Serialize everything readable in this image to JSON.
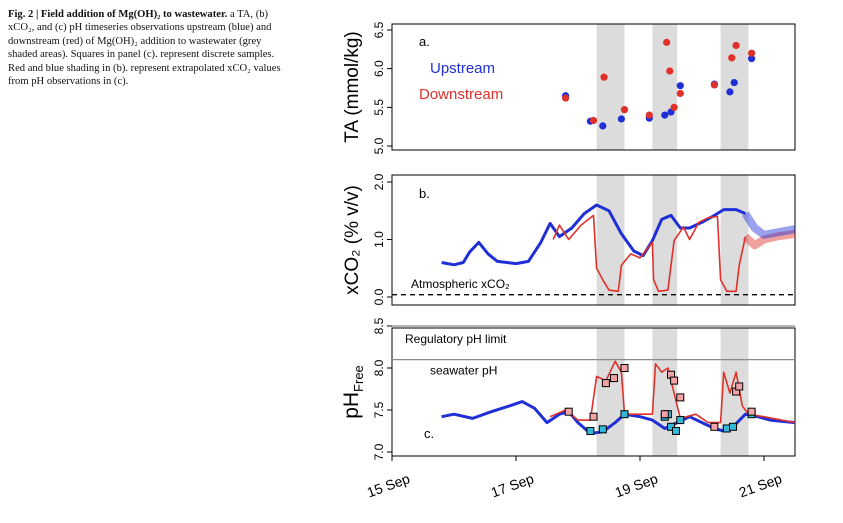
{
  "caption": {
    "title": "Fig. 2 | Field addition of Mg(OH)₂ to wastewater.",
    "body": "a TA, (b) xCO₂, and (c) pH timeseries observations upstream (blue) and downstream (red) of Mg(OH)₂ addition to wastewater (grey shaded areas). Squares in panel (c). represent discrete samples. Red and blue shading in (b). represent extrapolated xCO₂ values from pH observations in (c)."
  },
  "colors": {
    "upstream": "#1f2fd6",
    "downstream": "#e0302a",
    "shade": "#dcdcdc",
    "square_up": "#34b8d8",
    "square_down": "#f1a3a8"
  },
  "chart_data": [
    {
      "panel": "a",
      "type": "scatter",
      "ylabel": "TA (mmol/kg)",
      "xlim": [
        15.0,
        21.5
      ],
      "ylim": [
        5.0,
        6.5
      ],
      "yticks": [
        "5.0",
        "5.5",
        "6.0",
        "6.5"
      ],
      "shaded_intervals": [
        [
          18.3,
          18.75
        ],
        [
          19.2,
          19.6
        ],
        [
          20.3,
          20.75
        ]
      ],
      "legend": [
        "Upstream",
        "Downstream"
      ],
      "series": [
        {
          "name": "Upstream",
          "color": "#1f2fd6",
          "points": [
            [
              17.8,
              5.65
            ],
            [
              18.2,
              5.32
            ],
            [
              18.4,
              5.26
            ],
            [
              18.7,
              5.35
            ],
            [
              19.15,
              5.36
            ],
            [
              19.4,
              5.4
            ],
            [
              19.5,
              5.44
            ],
            [
              19.65,
              5.78
            ],
            [
              20.2,
              5.8
            ],
            [
              20.45,
              5.7
            ],
            [
              20.52,
              5.82
            ],
            [
              20.8,
              6.13
            ]
          ]
        },
        {
          "name": "Downstream",
          "color": "#e0302a",
          "points": [
            [
              17.8,
              5.62
            ],
            [
              18.25,
              5.33
            ],
            [
              18.42,
              5.89
            ],
            [
              18.75,
              5.47
            ],
            [
              19.15,
              5.4
            ],
            [
              19.43,
              6.34
            ],
            [
              19.48,
              5.97
            ],
            [
              19.55,
              5.5
            ],
            [
              19.65,
              5.68
            ],
            [
              20.2,
              5.79
            ],
            [
              20.48,
              6.14
            ],
            [
              20.55,
              6.3
            ],
            [
              20.8,
              6.2
            ]
          ]
        }
      ]
    },
    {
      "panel": "b",
      "type": "line",
      "ylabel": "xCO₂ (% v/v)",
      "xlim": [
        15.0,
        21.5
      ],
      "ylim": [
        0.0,
        2.0
      ],
      "yticks": [
        "0.0",
        "1.0",
        "2.0"
      ],
      "reference_line": {
        "label": "Atmospheric xCO₂",
        "y": 0.04
      },
      "series": [
        {
          "name": "Upstream",
          "color": "#1f2fd6",
          "points": [
            [
              15.8,
              0.6
            ],
            [
              16.0,
              0.56
            ],
            [
              16.15,
              0.6
            ],
            [
              16.25,
              0.78
            ],
            [
              16.4,
              0.95
            ],
            [
              16.55,
              0.75
            ],
            [
              16.7,
              0.62
            ],
            [
              17.0,
              0.58
            ],
            [
              17.2,
              0.62
            ],
            [
              17.4,
              0.95
            ],
            [
              17.55,
              1.28
            ],
            [
              17.7,
              1.05
            ],
            [
              17.9,
              1.2
            ],
            [
              18.1,
              1.45
            ],
            [
              18.3,
              1.6
            ],
            [
              18.5,
              1.5
            ],
            [
              18.7,
              1.1
            ],
            [
              18.9,
              0.8
            ],
            [
              19.05,
              0.72
            ],
            [
              19.2,
              0.98
            ],
            [
              19.35,
              1.35
            ],
            [
              19.5,
              1.42
            ],
            [
              19.65,
              1.2
            ],
            [
              19.8,
              1.2
            ],
            [
              20.0,
              1.3
            ],
            [
              20.2,
              1.42
            ],
            [
              20.35,
              1.52
            ],
            [
              20.55,
              1.52
            ],
            [
              20.7,
              1.45
            ]
          ]
        },
        {
          "name": "Downstream",
          "color": "#e0302a",
          "points": [
            [
              17.6,
              1.0
            ],
            [
              17.7,
              1.25
            ],
            [
              17.85,
              1.0
            ],
            [
              18.05,
              1.25
            ],
            [
              18.25,
              1.42
            ],
            [
              18.3,
              0.5
            ],
            [
              18.4,
              0.3
            ],
            [
              18.5,
              0.12
            ],
            [
              18.65,
              0.1
            ],
            [
              18.7,
              0.55
            ],
            [
              18.85,
              0.75
            ],
            [
              19.0,
              0.68
            ],
            [
              19.2,
              0.95
            ],
            [
              19.22,
              0.3
            ],
            [
              19.3,
              0.1
            ],
            [
              19.45,
              0.12
            ],
            [
              19.55,
              0.98
            ],
            [
              19.7,
              1.22
            ],
            [
              19.8,
              1.0
            ],
            [
              19.95,
              1.3
            ],
            [
              20.1,
              1.38
            ],
            [
              20.25,
              1.4
            ],
            [
              20.3,
              0.3
            ],
            [
              20.4,
              0.1
            ],
            [
              20.55,
              0.1
            ],
            [
              20.6,
              0.55
            ],
            [
              20.7,
              1.05
            ]
          ]
        }
      ],
      "extrapolated": [
        {
          "color": "#e0302a",
          "points": [
            [
              20.7,
              1.05
            ],
            [
              20.85,
              0.9
            ],
            [
              21.0,
              1.0
            ],
            [
              21.2,
              1.05
            ],
            [
              21.5,
              1.1
            ]
          ]
        },
        {
          "color": "#1f2fd6",
          "points": [
            [
              20.7,
              1.45
            ],
            [
              20.85,
              1.2
            ],
            [
              21.0,
              1.08
            ],
            [
              21.2,
              1.12
            ],
            [
              21.5,
              1.18
            ]
          ]
        }
      ]
    },
    {
      "panel": "c",
      "type": "line",
      "ylabel": "pH",
      "ylabel_sub": "Free",
      "xlim": [
        15.0,
        21.5
      ],
      "ylim": [
        7.0,
        8.5
      ],
      "yticks": [
        "7.0",
        "7.5",
        "8.0",
        "8.5"
      ],
      "xticks": [
        "15 Sep",
        "17 Sep",
        "19 Sep",
        "21 Sep"
      ],
      "xtick_values": [
        15.0,
        17.0,
        19.0,
        21.0
      ],
      "hlines": [
        {
          "label": "Regulatory pH limit",
          "y": 8.5
        },
        {
          "label": "seawater pH",
          "y": 8.1
        }
      ],
      "series": [
        {
          "name": "Upstream",
          "color": "#1f2fd6",
          "points": [
            [
              15.8,
              7.42
            ],
            [
              16.0,
              7.45
            ],
            [
              16.3,
              7.4
            ],
            [
              16.6,
              7.48
            ],
            [
              16.9,
              7.55
            ],
            [
              17.1,
              7.6
            ],
            [
              17.3,
              7.52
            ],
            [
              17.5,
              7.35
            ],
            [
              17.7,
              7.45
            ],
            [
              17.85,
              7.48
            ],
            [
              18.0,
              7.35
            ],
            [
              18.2,
              7.22
            ],
            [
              18.4,
              7.24
            ],
            [
              18.6,
              7.35
            ],
            [
              18.75,
              7.45
            ],
            [
              19.0,
              7.42
            ],
            [
              19.2,
              7.38
            ],
            [
              19.4,
              7.28
            ],
            [
              19.6,
              7.35
            ],
            [
              19.8,
              7.42
            ],
            [
              20.0,
              7.35
            ],
            [
              20.2,
              7.28
            ],
            [
              20.35,
              7.25
            ],
            [
              20.5,
              7.3
            ],
            [
              20.7,
              7.45
            ],
            [
              20.9,
              7.42
            ],
            [
              21.1,
              7.38
            ],
            [
              21.5,
              7.35
            ]
          ]
        },
        {
          "name": "Downstream",
          "color": "#e0302a",
          "points": [
            [
              17.55,
              7.42
            ],
            [
              17.8,
              7.5
            ],
            [
              18.0,
              7.38
            ],
            [
              18.2,
              7.38
            ],
            [
              18.3,
              7.9
            ],
            [
              18.45,
              7.85
            ],
            [
              18.6,
              8.08
            ],
            [
              18.7,
              7.95
            ],
            [
              18.75,
              7.45
            ],
            [
              19.0,
              7.45
            ],
            [
              19.2,
              7.45
            ],
            [
              19.25,
              8.05
            ],
            [
              19.35,
              7.95
            ],
            [
              19.45,
              8.0
            ],
            [
              19.55,
              7.7
            ],
            [
              19.65,
              7.4
            ],
            [
              19.9,
              7.45
            ],
            [
              20.1,
              7.35
            ],
            [
              20.3,
              7.35
            ],
            [
              20.35,
              7.95
            ],
            [
              20.45,
              7.7
            ],
            [
              20.55,
              7.95
            ],
            [
              20.65,
              7.55
            ],
            [
              20.75,
              7.45
            ],
            [
              21.0,
              7.42
            ],
            [
              21.5,
              7.35
            ]
          ]
        }
      ],
      "discrete_samples": {
        "upstream": [
          [
            18.2,
            7.25
          ],
          [
            18.4,
            7.27
          ],
          [
            18.75,
            7.45
          ],
          [
            19.4,
            7.42
          ],
          [
            19.45,
            7.45
          ],
          [
            19.5,
            7.3
          ],
          [
            19.58,
            7.25
          ],
          [
            19.65,
            7.38
          ],
          [
            20.4,
            7.28
          ],
          [
            20.5,
            7.3
          ],
          [
            20.8,
            7.45
          ]
        ],
        "downstream": [
          [
            17.85,
            7.48
          ],
          [
            18.25,
            7.42
          ],
          [
            18.45,
            7.82
          ],
          [
            18.58,
            7.88
          ],
          [
            18.75,
            8.0
          ],
          [
            19.4,
            7.45
          ],
          [
            19.5,
            7.92
          ],
          [
            19.55,
            7.85
          ],
          [
            19.65,
            7.65
          ],
          [
            20.2,
            7.3
          ],
          [
            20.55,
            7.72
          ],
          [
            20.6,
            7.78
          ],
          [
            20.8,
            7.48
          ]
        ]
      }
    }
  ],
  "panel_labels": [
    "a.",
    "b.",
    "c."
  ]
}
